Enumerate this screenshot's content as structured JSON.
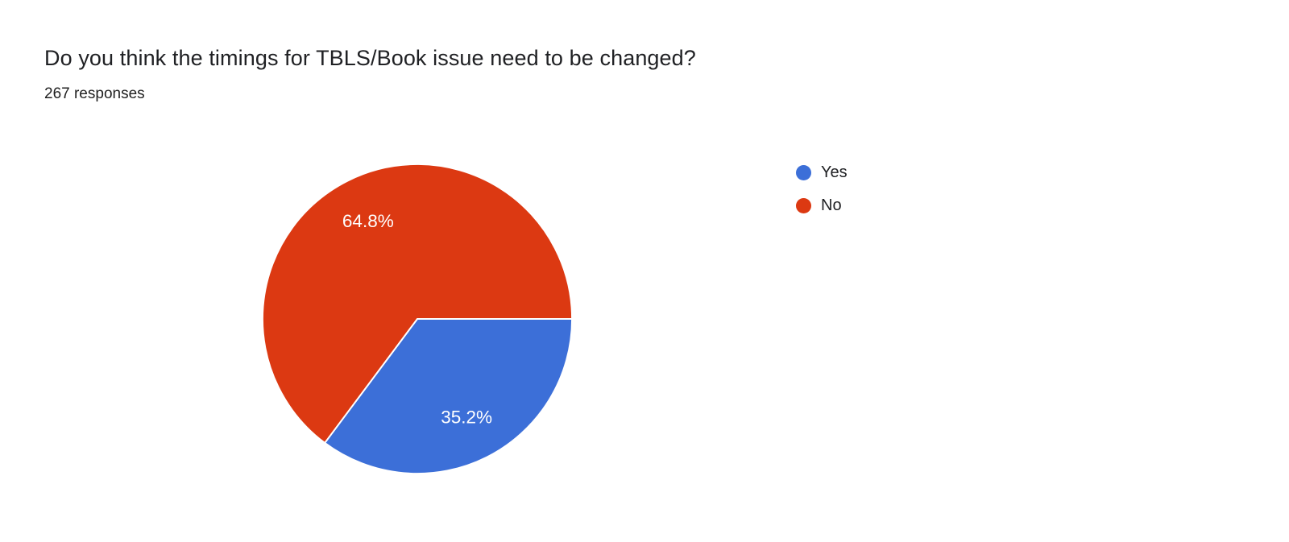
{
  "chart_data": {
    "type": "pie",
    "title": "Do you think the timings for TBLS/Book issue need to be changed?",
    "subtitle": "267 responses",
    "responses": 267,
    "slices": [
      {
        "label": "Yes",
        "value": 35.2,
        "display": "35.2%",
        "color": "#3c6fd8"
      },
      {
        "label": "No",
        "value": 64.8,
        "display": "64.8%",
        "color": "#dc3912"
      }
    ],
    "legend_position": "right",
    "start_angle_deg": 0,
    "direction": "clockwise",
    "label_color": "#ffffff",
    "background": "#ffffff"
  }
}
